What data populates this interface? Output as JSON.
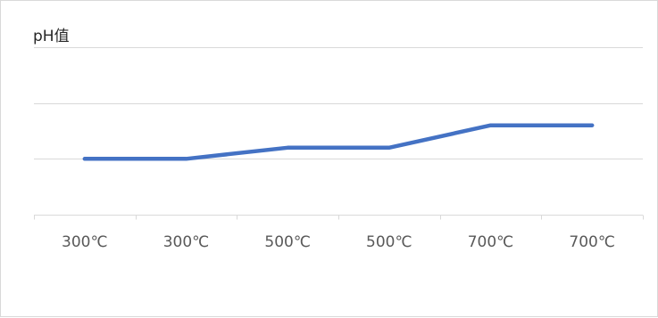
{
  "chart_data": {
    "type": "line",
    "title": "pH值",
    "xlabel": "",
    "ylabel": "",
    "categories": [
      "300℃",
      "300℃",
      "500℃",
      "500℃",
      "700℃",
      "700℃"
    ],
    "series": [
      {
        "name": "",
        "values": [
          6.0,
          6.0,
          6.2,
          6.2,
          6.6,
          6.6
        ],
        "color": "#4472c4"
      }
    ],
    "ylim": [
      5.0,
      8.0
    ],
    "y_gridlines": [
      6.0,
      7.0,
      8.0
    ],
    "grid": true,
    "legend": "none",
    "axis_tick_labels_y": "hidden"
  }
}
